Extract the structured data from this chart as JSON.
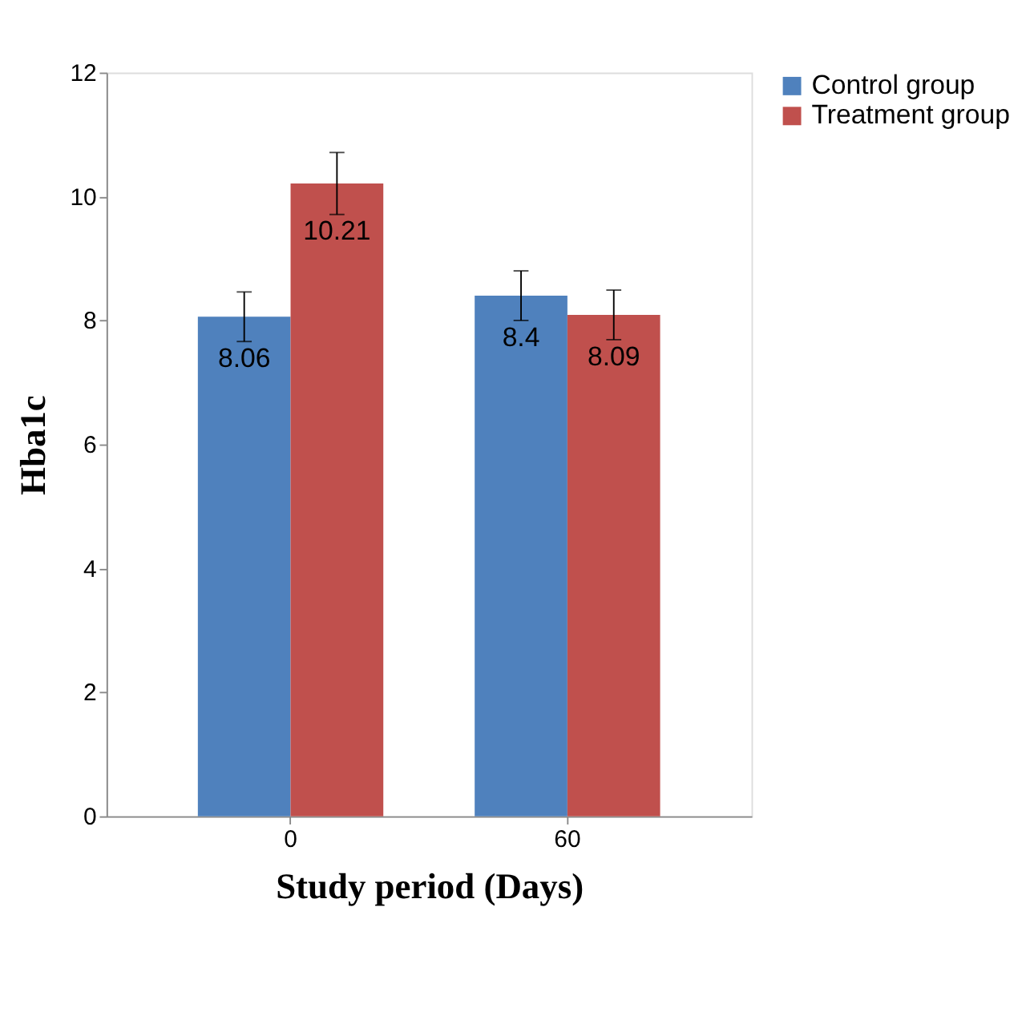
{
  "chart_data": {
    "type": "bar",
    "xlabel": "Study period (Days)",
    "ylabel": "Hba1c",
    "categories": [
      "0",
      "60"
    ],
    "series": [
      {
        "name": "Control group",
        "color": "#4f81bd",
        "values": [
          8.06,
          8.4
        ],
        "errors": [
          0.4,
          0.4
        ]
      },
      {
        "name": "Treatment group",
        "color": "#c0504d",
        "values": [
          10.21,
          8.09
        ],
        "errors": [
          0.5,
          0.4
        ]
      }
    ],
    "ylim": [
      0,
      12
    ],
    "yticks": [
      0,
      2,
      4,
      6,
      8,
      10,
      12
    ],
    "grid": false,
    "legend": "right",
    "data_labels": true
  }
}
